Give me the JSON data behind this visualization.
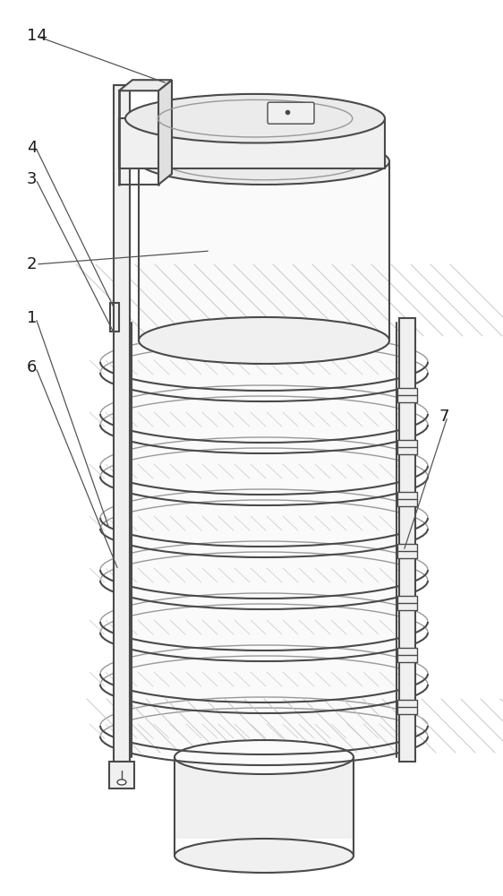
{
  "bg_color": "#ffffff",
  "line_color": "#4a4a4a",
  "light_line_color": "#999999",
  "fill_light": "#f0f0f0",
  "fill_white": "#fafafa",
  "fill_side": "#e0e0e0",
  "fill_top": "#ebebeb",
  "hatch_color": "#c8c8c8",
  "label_fontsize": 13,
  "figsize": [
    5.62,
    10.0
  ],
  "dpi": 100
}
